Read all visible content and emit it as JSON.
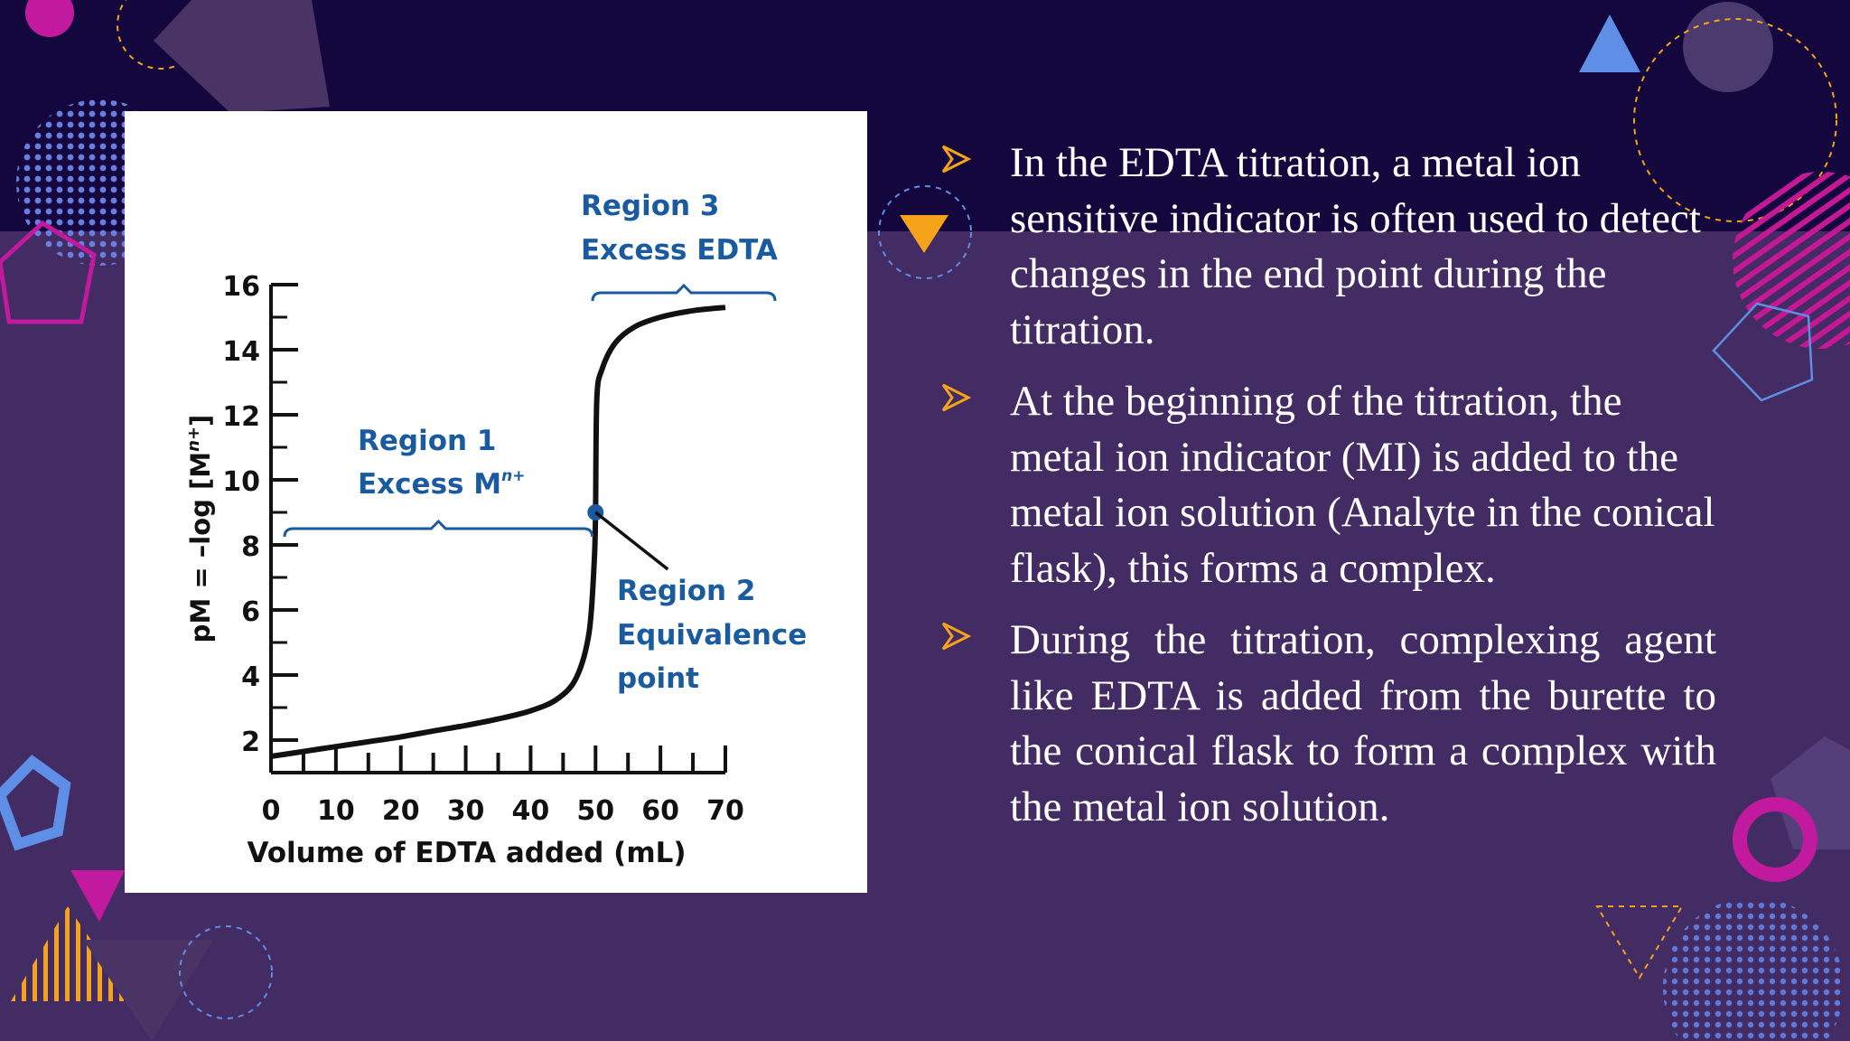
{
  "colors": {
    "background": "#432b63",
    "top_band": "#14073e",
    "text": "#ffffff",
    "bullet_arrow": "#f5a31a",
    "chart_label": "#1a5a9e",
    "chart_line": "#111111"
  },
  "bullets": [
    {
      "icon": "arrow-bullet-icon",
      "text": "In the EDTA titration, a metal  ion sensitive indicator is often  used to detect changes in the  end point during the titration."
    },
    {
      "icon": "arrow-bullet-icon",
      "text": "At the beginning of the  titration, the metal ion  indicator (MI) is added to the  metal ion solution (Analyte in the conical flask), this forms a complex."
    },
    {
      "icon": "arrow-bullet-icon",
      "text": "During  the  titration,  complexing agent  like  EDTA  is  added  from  the burette to  the conical flask to form a complex with the metal ion solution."
    }
  ],
  "chart_data": {
    "type": "line",
    "xlabel": "Volume of EDTA added (mL)",
    "ylabel_prefix": "pM = –log [M",
    "ylabel_sup": "n+",
    "ylabel_suffix": "]",
    "xlim": [
      0,
      70
    ],
    "ylim": [
      1,
      16
    ],
    "x_ticks": [
      "0",
      "10",
      "20",
      "30",
      "40",
      "50",
      "60",
      "70"
    ],
    "y_ticks": [
      "2",
      "4",
      "6",
      "8",
      "10",
      "12",
      "14",
      "16"
    ],
    "x": [
      0,
      5,
      10,
      15,
      20,
      25,
      30,
      35,
      40,
      44,
      47,
      49,
      49.8,
      50,
      50.2,
      51,
      53,
      56,
      60,
      65,
      70
    ],
    "y": [
      1.5,
      1.65,
      1.8,
      1.95,
      2.1,
      2.28,
      2.45,
      2.65,
      2.9,
      3.25,
      3.9,
      5.3,
      7.5,
      9,
      12.5,
      13.4,
      14.2,
      14.7,
      15.0,
      15.2,
      15.3
    ],
    "equivalence_point": {
      "x": 50,
      "y": 9
    },
    "regions": [
      {
        "lines": [
          "Region 1",
          "Excess M"
        ],
        "sup": "n+",
        "x_range": [
          0,
          49.5
        ]
      },
      {
        "lines": [
          "Region 2",
          "Equivalence",
          "point"
        ]
      },
      {
        "lines": [
          "Region 3",
          "Excess EDTA"
        ],
        "x_range": [
          50,
          78
        ]
      }
    ]
  }
}
